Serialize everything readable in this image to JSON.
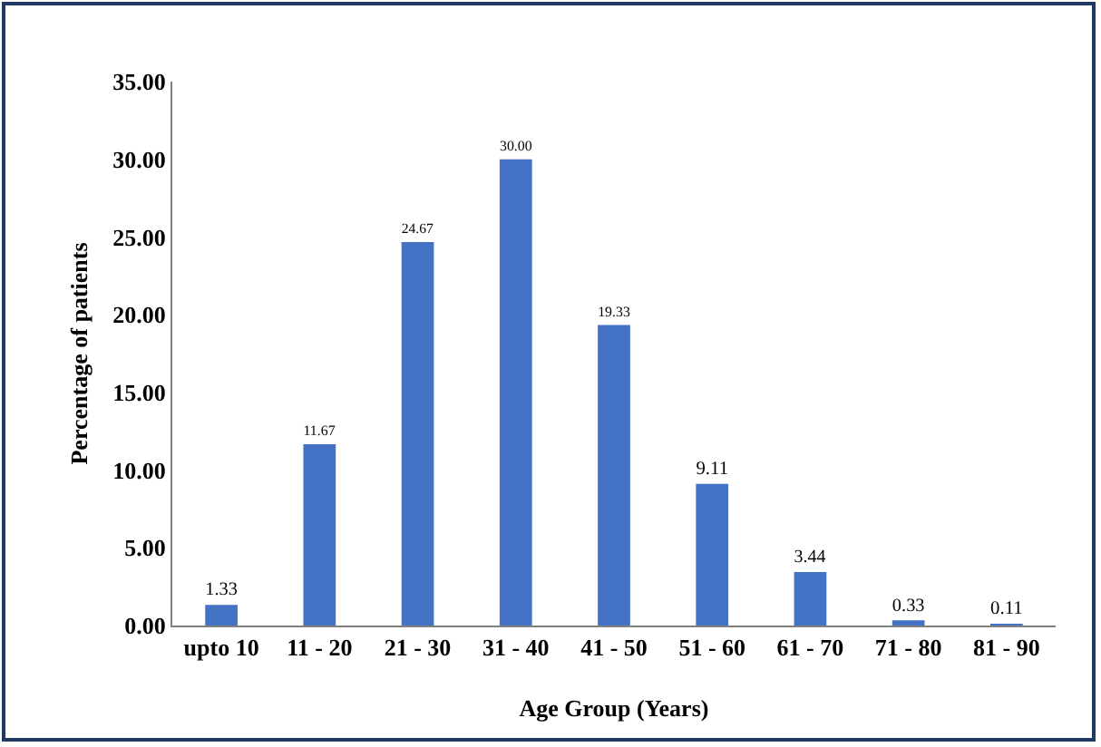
{
  "chart_data": {
    "type": "bar",
    "categories": [
      "upto 10",
      "11 - 20",
      "21 - 30",
      "31 - 40",
      "41 - 50",
      "51 - 60",
      "61 - 70",
      "71 - 80",
      "81 - 90"
    ],
    "values": [
      1.33,
      11.67,
      24.67,
      30.0,
      19.33,
      9.11,
      3.44,
      0.33,
      0.11
    ],
    "color": "#4472c4",
    "xlabel": "Age Group (Years)",
    "ylabel": "Percentage of patients",
    "ylim": [
      0,
      35
    ],
    "yticks": [
      {
        "value": 0,
        "label": "0.00"
      },
      {
        "value": 5,
        "label": "5.00"
      },
      {
        "value": 10,
        "label": "10.00"
      },
      {
        "value": 15,
        "label": "15.00"
      },
      {
        "value": 20,
        "label": "20.00"
      },
      {
        "value": 25,
        "label": "25.00"
      },
      {
        "value": 30,
        "label": "30.00"
      },
      {
        "value": 35,
        "label": "35.00"
      }
    ],
    "value_labels": [
      "1.33",
      "11.67",
      "24.67",
      "30.00",
      "19.33",
      "9.11",
      "3.44",
      "0.33",
      "0.11"
    ],
    "grid": false,
    "legend": false
  }
}
